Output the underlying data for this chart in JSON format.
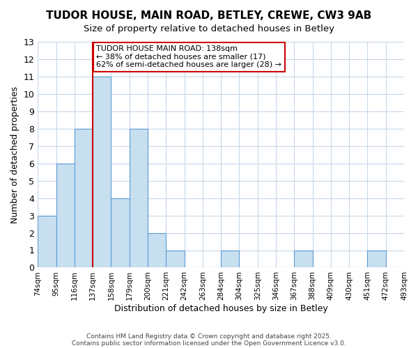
{
  "title": "TUDOR HOUSE, MAIN ROAD, BETLEY, CREWE, CW3 9AB",
  "subtitle": "Size of property relative to detached houses in Betley",
  "xlabel": "Distribution of detached houses by size in Betley",
  "ylabel": "Number of detached properties",
  "bin_edges": [
    74,
    95,
    116,
    137,
    158,
    179,
    200,
    221,
    242,
    263,
    284,
    304,
    325,
    346,
    367,
    388,
    409,
    430,
    451,
    472,
    493
  ],
  "bin_labels": [
    "74sqm",
    "95sqm",
    "116sqm",
    "137sqm",
    "158sqm",
    "179sqm",
    "200sqm",
    "221sqm",
    "242sqm",
    "263sqm",
    "284sqm",
    "304sqm",
    "325sqm",
    "346sqm",
    "367sqm",
    "388sqm",
    "409sqm",
    "430sqm",
    "451sqm",
    "472sqm",
    "493sqm"
  ],
  "counts": [
    3,
    6,
    8,
    11,
    4,
    8,
    2,
    1,
    0,
    0,
    1,
    0,
    0,
    0,
    1,
    0,
    0,
    0,
    1,
    0
  ],
  "property_value": 138,
  "property_bin_index": 3,
  "bar_color": "#c8dff0",
  "bar_edge_color": "#5b9bd5",
  "highlight_line_color": "#cc0000",
  "background_color": "#ffffff",
  "grid_color": "#c8d8e8",
  "annotation_text": "TUDOR HOUSE MAIN ROAD: 138sqm\n← 38% of detached houses are smaller (17)\n62% of semi-detached houses are larger (28) →",
  "annotation_box_edge_color": "#cc0000",
  "footer_text1": "Contains HM Land Registry data © Crown copyright and database right 2025.",
  "footer_text2": "Contains public sector information licensed under the Open Government Licence v3.0.",
  "ylim": [
    0,
    13
  ],
  "yticks": [
    0,
    1,
    2,
    3,
    4,
    5,
    6,
    7,
    8,
    9,
    10,
    11,
    12,
    13
  ]
}
